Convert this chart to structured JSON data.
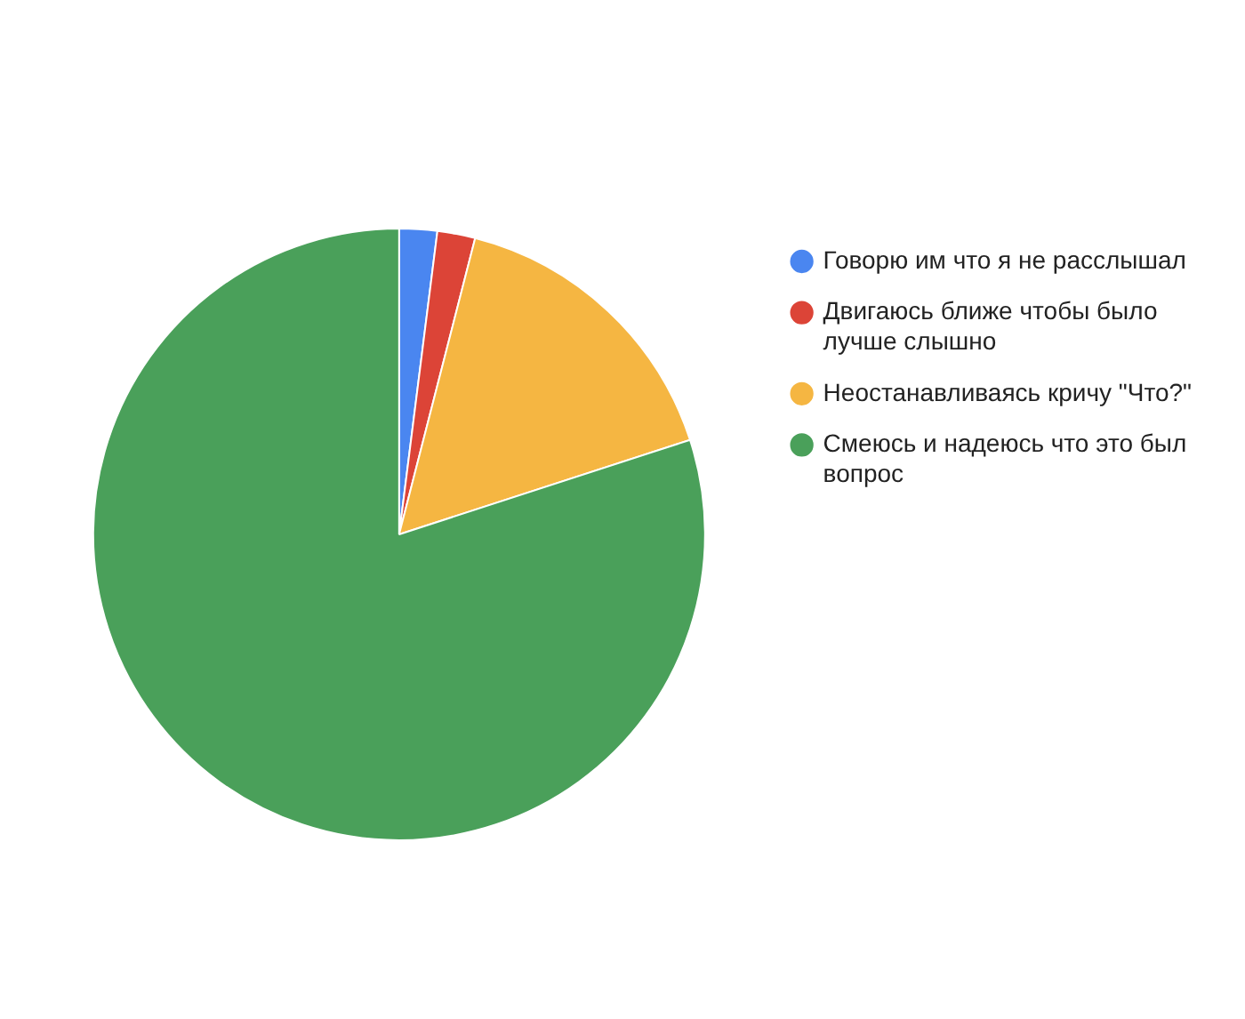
{
  "chart_data": {
    "type": "pie",
    "categories": [
      "Говорю им что я не расслышал",
      "Двигаюсь ближе чтобы было лучше слышно",
      "Неостанавливаясь кричу \"Что?\"",
      "Смеюсь и надеюсь что это был вопрос"
    ],
    "values": [
      2,
      2,
      16,
      80
    ],
    "colors": [
      "#4a86f0",
      "#dc4437",
      "#f5b642",
      "#4aa05a"
    ],
    "legend": "right"
  }
}
